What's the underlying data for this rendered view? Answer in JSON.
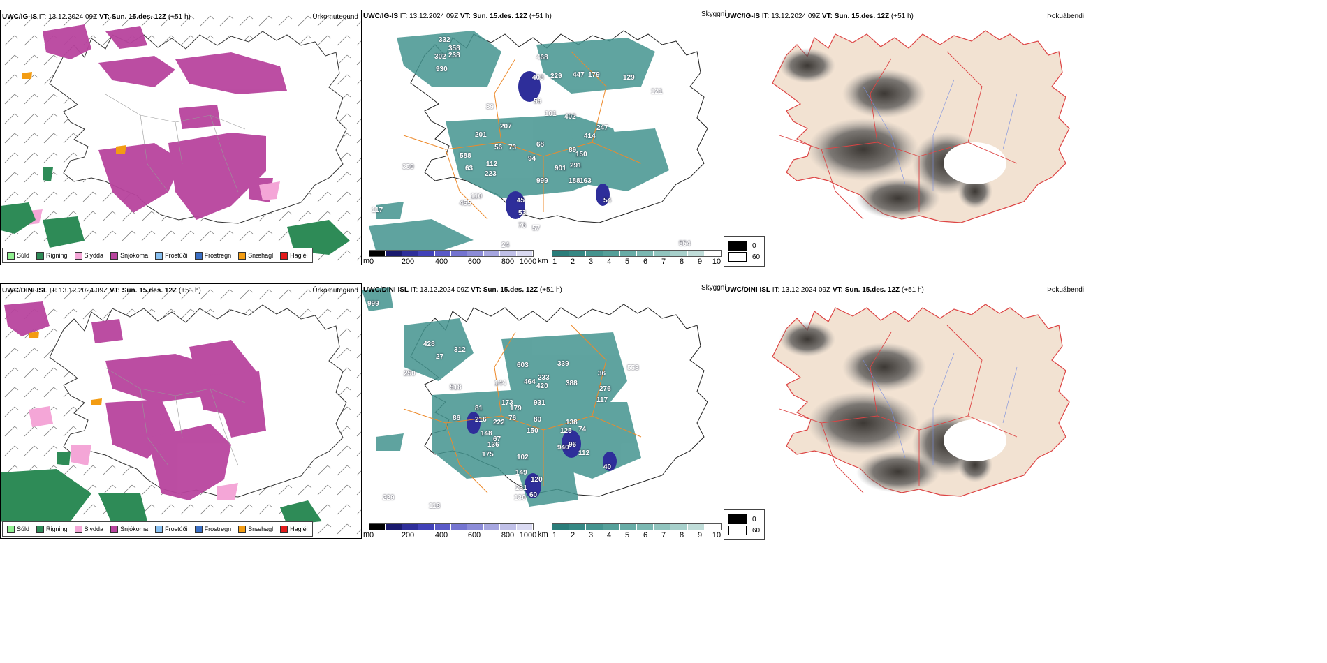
{
  "rows": [
    {
      "model": "UWC/IG-IS",
      "init": "IT: 13.12.2024 09Z",
      "vt_label": "VT:",
      "valid": "Sun. 15.des. 12Z",
      "lead": "(+51 h)",
      "precip_title": "Úrkomutegund",
      "cloud_title": "Skyggni",
      "fog_title": "Þokuábendi",
      "cloud_labels": [
        "332",
        "358",
        "302",
        "238",
        "930",
        "468",
        "403",
        "229",
        "447",
        "179",
        "129",
        "121",
        "56",
        "101",
        "402",
        "39",
        "207",
        "414",
        "247",
        "201",
        "73",
        "56",
        "68",
        "89",
        "150",
        "588",
        "112",
        "223",
        "94",
        "901",
        "291",
        "999",
        "188",
        "163",
        "63",
        "110",
        "455",
        "45",
        "53",
        "76",
        "57",
        "54",
        "117",
        "350",
        "554",
        "24"
      ]
    },
    {
      "model": "UWC/DINI ISL",
      "init": "IT: 13.12.2024 09Z",
      "vt_label": "VT:",
      "valid": "Sun. 15.des. 12Z",
      "lead": "(+51 h)",
      "precip_title": "Úrkomutegund",
      "cloud_title": "Skyggni",
      "fog_title": "Þokuábendi",
      "cloud_labels": [
        "999",
        "428",
        "312",
        "27",
        "250",
        "603",
        "339",
        "553",
        "276",
        "518",
        "464",
        "233",
        "420",
        "388",
        "36",
        "117",
        "144",
        "173",
        "179",
        "931",
        "81",
        "86",
        "216",
        "222",
        "76",
        "80",
        "138",
        "74",
        "148",
        "67",
        "150",
        "125",
        "96",
        "112",
        "136",
        "175",
        "940",
        "102",
        "40",
        "149",
        "120",
        "231",
        "60",
        "130",
        "229",
        "118"
      ]
    }
  ],
  "precip_legend": [
    {
      "label": "Súld",
      "color": "#90ee90"
    },
    {
      "label": "Rigning",
      "color": "#2e8b57"
    },
    {
      "label": "Slydda",
      "color": "#f4a6d7"
    },
    {
      "label": "Snjókoma",
      "color": "#b8449e"
    },
    {
      "label": "Frostúði",
      "color": "#87bff0"
    },
    {
      "label": "Frostregn",
      "color": "#3a6fc4"
    },
    {
      "label": "Snæhagl",
      "color": "#f39c12"
    },
    {
      "label": "Haglél",
      "color": "#e31b1b"
    }
  ],
  "base_legend": {
    "unit": "m",
    "ticks": [
      "0",
      "200",
      "400",
      "600",
      "800",
      "1000"
    ],
    "colors": [
      "#000000",
      "#1a1a6e",
      "#2e2e9a",
      "#4141b8",
      "#5a5ac8",
      "#7474d0",
      "#8c8cd8",
      "#a6a6e0",
      "#c0c0e8",
      "#dadaf2"
    ]
  },
  "vis_legend": {
    "unit": "km",
    "ticks": [
      "1",
      "2",
      "3",
      "4",
      "5",
      "6",
      "7",
      "8",
      "9",
      "10"
    ],
    "colors": [
      "#2a7d7a",
      "#358884",
      "#44948f",
      "#55a09a",
      "#67aca6",
      "#7bb8b2",
      "#90c4be",
      "#a7d0cb",
      "#c0ddd9",
      "#ffffff"
    ]
  },
  "fog_legend": {
    "ticks": [
      "0",
      "60"
    ],
    "colors": [
      "#000000",
      "#ffffff"
    ]
  }
}
